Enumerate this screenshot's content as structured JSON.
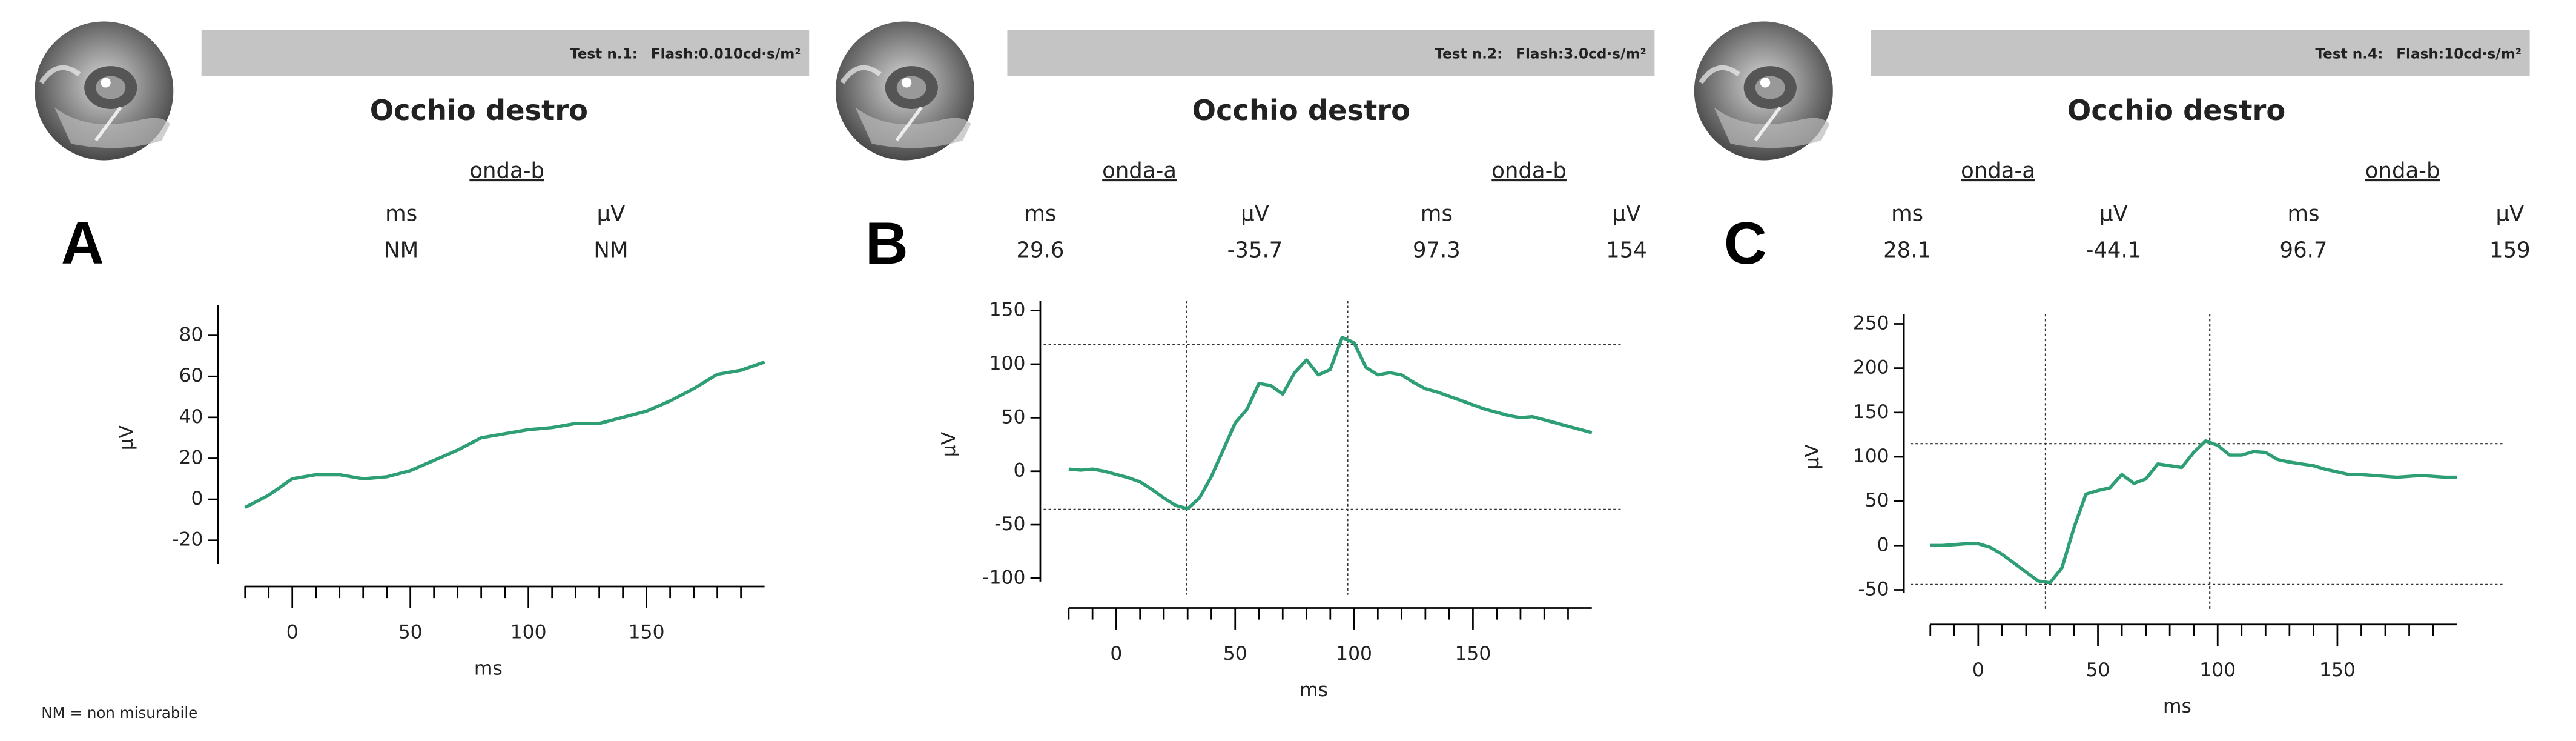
{
  "chart_data": [
    {
      "type": "line",
      "panel": "A",
      "test": "Test n.1:",
      "flash": "Flash:0.010cd·s/m²",
      "eye": "Occhio destro",
      "units": [
        "ms",
        "µV"
      ],
      "waves": [
        {
          "name": "onda-b",
          "ms": "NM",
          "uv": "NM"
        }
      ],
      "xlabel": "ms",
      "ylabel": "µV",
      "xlim": [
        -20,
        200
      ],
      "xticks": [
        0,
        50,
        100,
        150
      ],
      "xminorticks": [
        -20,
        -10,
        10,
        20,
        30,
        40,
        60,
        70,
        80,
        90,
        110,
        120,
        130,
        140,
        160,
        170,
        180,
        190
      ],
      "ylim": [
        -30,
        90
      ],
      "yticks": [
        -20,
        0,
        20,
        40,
        60,
        80
      ],
      "x": [
        -20,
        -10,
        0,
        10,
        20,
        30,
        40,
        50,
        60,
        70,
        80,
        90,
        100,
        110,
        120,
        130,
        140,
        150,
        160,
        170,
        180,
        190,
        200
      ],
      "series": [
        {
          "color": "#2e9e74",
          "values": [
            -4,
            2,
            10,
            12,
            12,
            10,
            11,
            14,
            19,
            24,
            30,
            32,
            34,
            35,
            37,
            37,
            40,
            43,
            48,
            54,
            61,
            63,
            67
          ]
        }
      ]
    },
    {
      "type": "line",
      "panel": "B",
      "test": "Test n.2:",
      "flash": "Flash:3.0cd·s/m²",
      "eye": "Occhio destro",
      "units": [
        "ms",
        "µV"
      ],
      "waves": [
        {
          "name": "onda-a",
          "ms": 29.6,
          "uv": -35.7
        },
        {
          "name": "onda-b",
          "ms": 97.3,
          "uv": 154
        }
      ],
      "xlabel": "ms",
      "ylabel": "µV",
      "xlim": [
        -20,
        200
      ],
      "xticks": [
        0,
        50,
        100,
        150
      ],
      "xminorticks": [
        -20,
        -10,
        10,
        20,
        30,
        40,
        60,
        70,
        80,
        90,
        110,
        120,
        130,
        140,
        160,
        170,
        180,
        190
      ],
      "ylim": [
        -100,
        150
      ],
      "yticks": [
        -100,
        -50,
        0,
        50,
        100,
        150
      ],
      "x": [
        -20,
        -15,
        -10,
        -5,
        0,
        5,
        10,
        15,
        20,
        25,
        30,
        35,
        40,
        45,
        50,
        55,
        60,
        65,
        70,
        75,
        80,
        85,
        90,
        95,
        100,
        105,
        110,
        115,
        120,
        125,
        130,
        135,
        140,
        145,
        150,
        155,
        160,
        165,
        170,
        175,
        180,
        185,
        190,
        195,
        200
      ],
      "series": [
        {
          "color": "#2e9e74",
          "values": [
            2,
            1,
            2,
            0,
            -3,
            -6,
            -10,
            -17,
            -25,
            -32,
            -35,
            -25,
            -5,
            20,
            45,
            58,
            82,
            80,
            72,
            92,
            104,
            90,
            95,
            125,
            120,
            97,
            90,
            92,
            90,
            83,
            77,
            74,
            70,
            66,
            62,
            58,
            55,
            52,
            50,
            51,
            48,
            45,
            42,
            39,
            36
          ]
        }
      ]
    },
    {
      "type": "line",
      "panel": "C",
      "test": "Test n.4:",
      "flash": "Flash:10cd·s/m²",
      "eye": "Occhio destro",
      "units": [
        "ms",
        "µV"
      ],
      "waves": [
        {
          "name": "onda-a",
          "ms": 28.1,
          "uv": -44.1
        },
        {
          "name": "onda-b",
          "ms": 96.7,
          "uv": 159
        }
      ],
      "xlabel": "ms",
      "ylabel": "µV",
      "xlim": [
        -20,
        200
      ],
      "xticks": [
        0,
        50,
        100,
        150
      ],
      "xminorticks": [
        -20,
        -10,
        10,
        20,
        30,
        40,
        60,
        70,
        80,
        90,
        110,
        120,
        130,
        140,
        160,
        170,
        180,
        190
      ],
      "ylim": [
        -50,
        250
      ],
      "yticks": [
        -50,
        0,
        50,
        100,
        150,
        200,
        250
      ],
      "x": [
        -20,
        -15,
        -10,
        -5,
        0,
        5,
        10,
        15,
        20,
        25,
        30,
        35,
        40,
        45,
        50,
        55,
        60,
        65,
        70,
        75,
        80,
        85,
        90,
        95,
        100,
        105,
        110,
        115,
        120,
        125,
        130,
        135,
        140,
        145,
        150,
        155,
        160,
        165,
        170,
        175,
        180,
        185,
        190,
        195,
        200
      ],
      "series": [
        {
          "color": "#2e9e74",
          "values": [
            0,
            0,
            1,
            2,
            2,
            -2,
            -10,
            -20,
            -30,
            -40,
            -42,
            -25,
            20,
            58,
            62,
            65,
            80,
            70,
            75,
            92,
            90,
            88,
            105,
            118,
            113,
            102,
            102,
            106,
            105,
            97,
            94,
            92,
            90,
            86,
            83,
            80,
            80,
            79,
            78,
            77,
            78,
            79,
            78,
            77,
            77
          ]
        }
      ]
    }
  ],
  "footnote": "NM = non misurabile"
}
